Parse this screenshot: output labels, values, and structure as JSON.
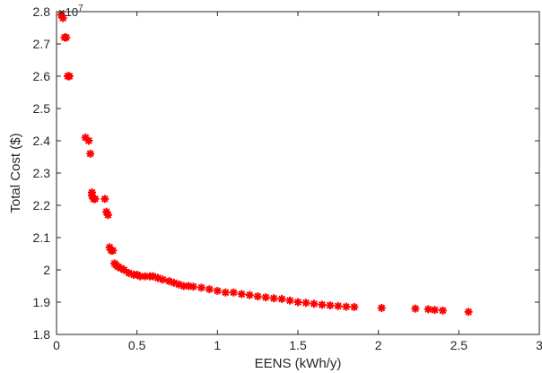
{
  "chart_data": {
    "type": "scatter",
    "title": "",
    "xlabel": "EENS (kWh/y)",
    "ylabel": "Total Cost ($)",
    "y_exponent_label": "×10",
    "y_exponent_power": "7",
    "xlim": [
      0,
      3
    ],
    "ylim": [
      1.8,
      2.8
    ],
    "x_ticks": [
      0,
      0.5,
      1,
      1.5,
      2,
      2.5,
      3
    ],
    "x_tick_labels": [
      "0",
      "0.5",
      "1",
      "1.5",
      "2",
      "2.5",
      "3"
    ],
    "y_ticks": [
      1.8,
      1.9,
      2.0,
      2.1,
      2.2,
      2.3,
      2.4,
      2.5,
      2.6,
      2.7,
      2.8
    ],
    "y_tick_labels": [
      "1.8",
      "1.9",
      "2",
      "2.1",
      "2.2",
      "2.3",
      "2.4",
      "2.5",
      "2.6",
      "2.7",
      "2.8"
    ],
    "grid": false,
    "marker": "asterisk",
    "marker_color": "#ff0000",
    "series": [
      {
        "x": [
          0.03,
          0.04,
          0.05,
          0.06,
          0.07,
          0.08,
          0.18,
          0.2,
          0.21,
          0.22,
          0.22,
          0.23,
          0.24,
          0.3,
          0.31,
          0.32,
          0.33,
          0.34,
          0.35,
          0.36,
          0.37,
          0.38,
          0.4,
          0.42,
          0.45,
          0.48,
          0.5,
          0.52,
          0.55,
          0.58,
          0.6,
          0.63,
          0.66,
          0.7,
          0.73,
          0.76,
          0.79,
          0.82,
          0.85,
          0.9,
          0.95,
          1.0,
          1.05,
          1.1,
          1.15,
          1.2,
          1.25,
          1.3,
          1.35,
          1.4,
          1.45,
          1.5,
          1.55,
          1.6,
          1.65,
          1.7,
          1.75,
          1.8,
          1.85,
          2.02,
          2.23,
          2.31,
          2.35,
          2.4,
          2.56
        ],
        "y": [
          2.79,
          2.78,
          2.72,
          2.72,
          2.6,
          2.6,
          2.41,
          2.4,
          2.36,
          2.24,
          2.23,
          2.22,
          2.22,
          2.22,
          2.18,
          2.17,
          2.07,
          2.06,
          2.06,
          2.02,
          2.015,
          2.01,
          2.005,
          2.0,
          1.99,
          1.985,
          1.985,
          1.98,
          1.98,
          1.98,
          1.98,
          1.975,
          1.97,
          1.965,
          1.96,
          1.955,
          1.95,
          1.95,
          1.948,
          1.945,
          1.94,
          1.935,
          1.93,
          1.93,
          1.925,
          1.922,
          1.918,
          1.915,
          1.912,
          1.91,
          1.905,
          1.9,
          1.898,
          1.895,
          1.892,
          1.89,
          1.888,
          1.886,
          1.885,
          1.882,
          1.88,
          1.878,
          1.876,
          1.874,
          1.87
        ]
      }
    ]
  }
}
